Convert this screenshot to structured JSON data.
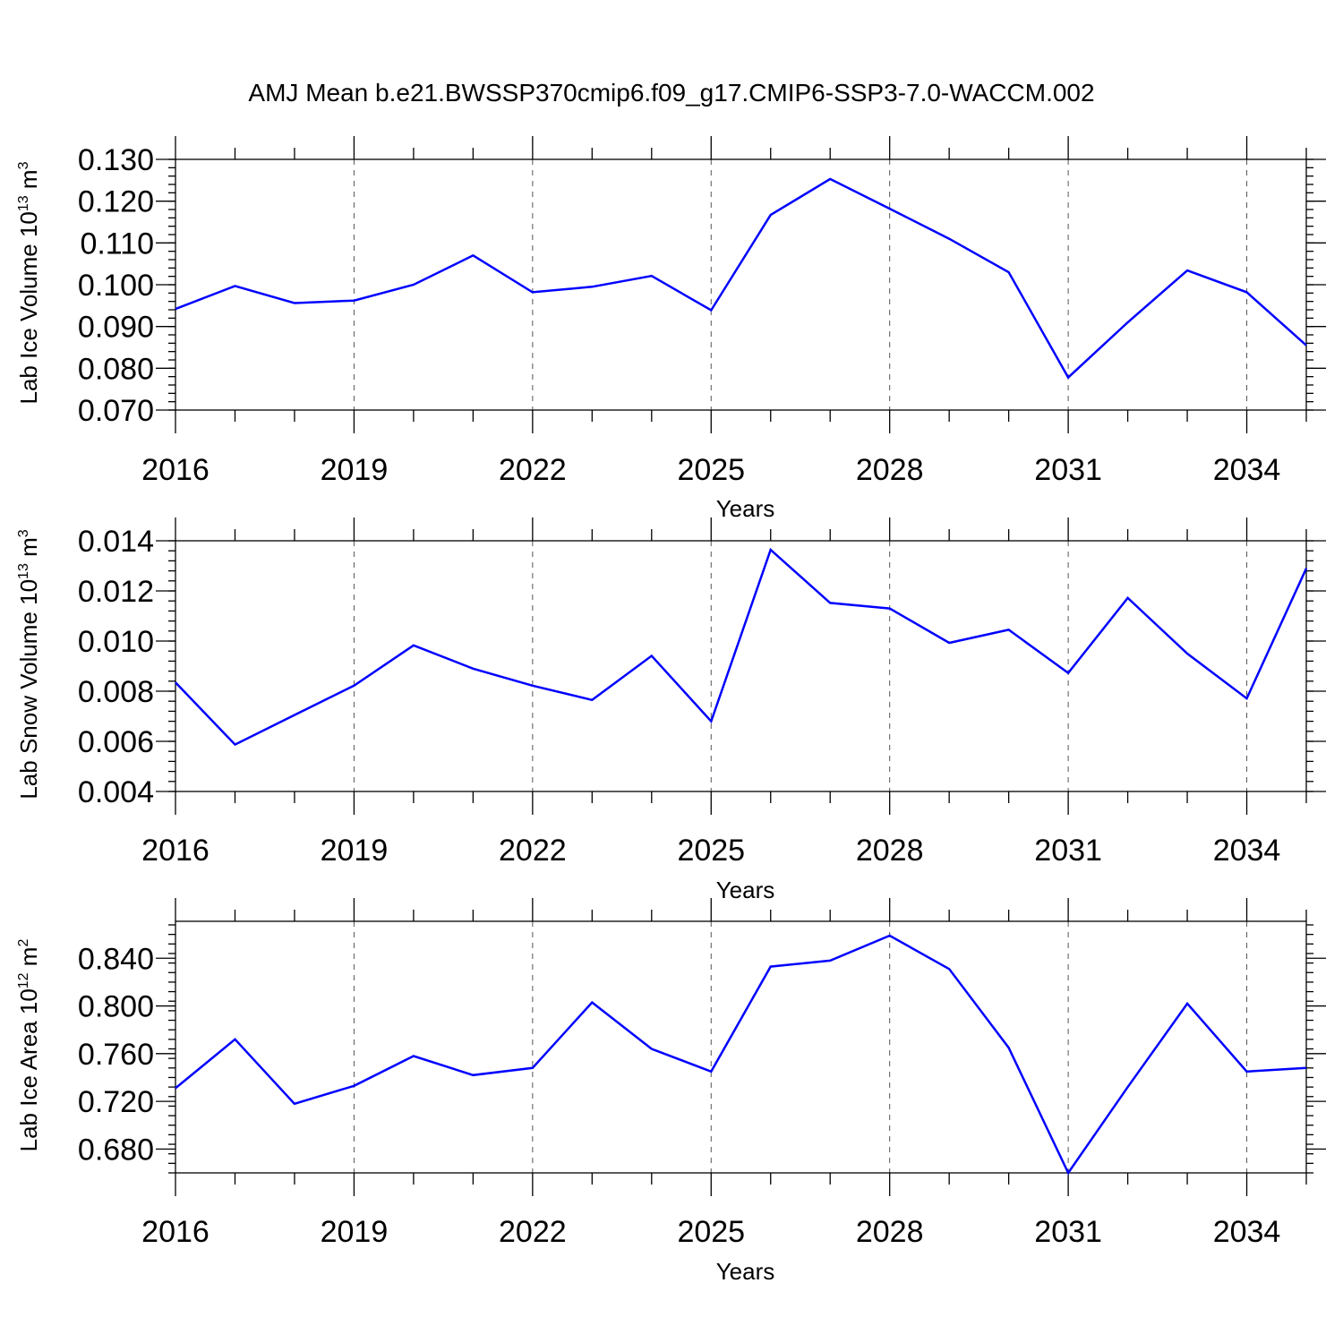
{
  "title": "AMJ Mean b.e21.BWSSP370cmip6.f09_g17.CMIP6-SSP3-7.0-WACCM.002",
  "colors": {
    "line": "#0000ff",
    "axis": "#000000",
    "grid": "#555555"
  },
  "chart_data": [
    {
      "type": "line",
      "ylabel_main": "Lab Ice Volume 10",
      "ylabel_sup": "13",
      "ylabel_tail": " m",
      "ylabel_sup2": "3",
      "xlabel": "Years",
      "xlim": [
        2016,
        2035
      ],
      "xticks": [
        "2016",
        "2019",
        "2022",
        "2025",
        "2028",
        "2031",
        "2034"
      ],
      "xtick_values": [
        2016,
        2019,
        2022,
        2025,
        2028,
        2031,
        2034
      ],
      "ylim": [
        0.07,
        0.13
      ],
      "yticks": [
        "0.070",
        "0.080",
        "0.090",
        "0.100",
        "0.110",
        "0.120",
        "0.130"
      ],
      "ytick_values": [
        0.07,
        0.08,
        0.09,
        0.1,
        0.11,
        0.12,
        0.13
      ],
      "y_minor_step": 0.002,
      "grid": "vertical dashed at major x ticks",
      "x": [
        2016,
        2017,
        2018,
        2019,
        2020,
        2021,
        2022,
        2023,
        2024,
        2025,
        2026,
        2027,
        2028,
        2029,
        2030,
        2031,
        2032,
        2033,
        2034,
        2035
      ],
      "y": [
        0.0942,
        0.0997,
        0.0956,
        0.0962,
        0.1,
        0.107,
        0.0982,
        0.0995,
        0.1021,
        0.0939,
        0.1167,
        0.1253,
        0.1182,
        0.111,
        0.103,
        0.0778,
        0.091,
        0.1034,
        0.0982,
        0.0855
      ]
    },
    {
      "type": "line",
      "ylabel_main": "Lab Snow Volume 10",
      "ylabel_sup": "13",
      "ylabel_tail": " m",
      "ylabel_sup2": "3",
      "xlabel": "Years",
      "xlim": [
        2016,
        2035
      ],
      "xticks": [
        "2016",
        "2019",
        "2022",
        "2025",
        "2028",
        "2031",
        "2034"
      ],
      "xtick_values": [
        2016,
        2019,
        2022,
        2025,
        2028,
        2031,
        2034
      ],
      "ylim": [
        0.004,
        0.014
      ],
      "yticks": [
        "0.004",
        "0.006",
        "0.008",
        "0.010",
        "0.012",
        "0.014"
      ],
      "ytick_values": [
        0.004,
        0.006,
        0.008,
        0.01,
        0.012,
        0.014
      ],
      "y_minor_step": 0.0004,
      "grid": "vertical dashed at major x ticks",
      "x": [
        2016,
        2017,
        2018,
        2019,
        2020,
        2021,
        2022,
        2023,
        2024,
        2025,
        2026,
        2027,
        2028,
        2029,
        2030,
        2031,
        2032,
        2033,
        2034,
        2035
      ],
      "y": [
        0.00835,
        0.00587,
        0.00705,
        0.00822,
        0.00983,
        0.0089,
        0.00822,
        0.00765,
        0.00941,
        0.0068,
        0.01364,
        0.01152,
        0.0113,
        0.00993,
        0.01045,
        0.00873,
        0.01172,
        0.0095,
        0.00771,
        0.0129
      ]
    },
    {
      "type": "line",
      "ylabel_main": "Lab Ice Area 10",
      "ylabel_sup": "12",
      "ylabel_tail": " m",
      "ylabel_sup2": "2",
      "xlabel": "Years",
      "xlim": [
        2016,
        2035
      ],
      "xticks": [
        "2016",
        "2019",
        "2022",
        "2025",
        "2028",
        "2031",
        "2034"
      ],
      "xtick_values": [
        2016,
        2019,
        2022,
        2025,
        2028,
        2031,
        2034
      ],
      "ylim": [
        0.66,
        0.871
      ],
      "yticks": [
        "0.680",
        "0.720",
        "0.760",
        "0.800",
        "0.840"
      ],
      "ytick_values": [
        0.68,
        0.72,
        0.76,
        0.8,
        0.84
      ],
      "y_minor_step": 0.008,
      "grid": "vertical dashed at major x ticks",
      "x": [
        2016,
        2017,
        2018,
        2019,
        2020,
        2021,
        2022,
        2023,
        2024,
        2025,
        2026,
        2027,
        2028,
        2029,
        2030,
        2031,
        2032,
        2033,
        2034,
        2035
      ],
      "y": [
        0.731,
        0.772,
        0.718,
        0.733,
        0.758,
        0.742,
        0.748,
        0.803,
        0.764,
        0.745,
        0.833,
        0.838,
        0.859,
        0.831,
        0.765,
        0.66,
        0.732,
        0.802,
        0.745,
        0.748
      ]
    }
  ]
}
